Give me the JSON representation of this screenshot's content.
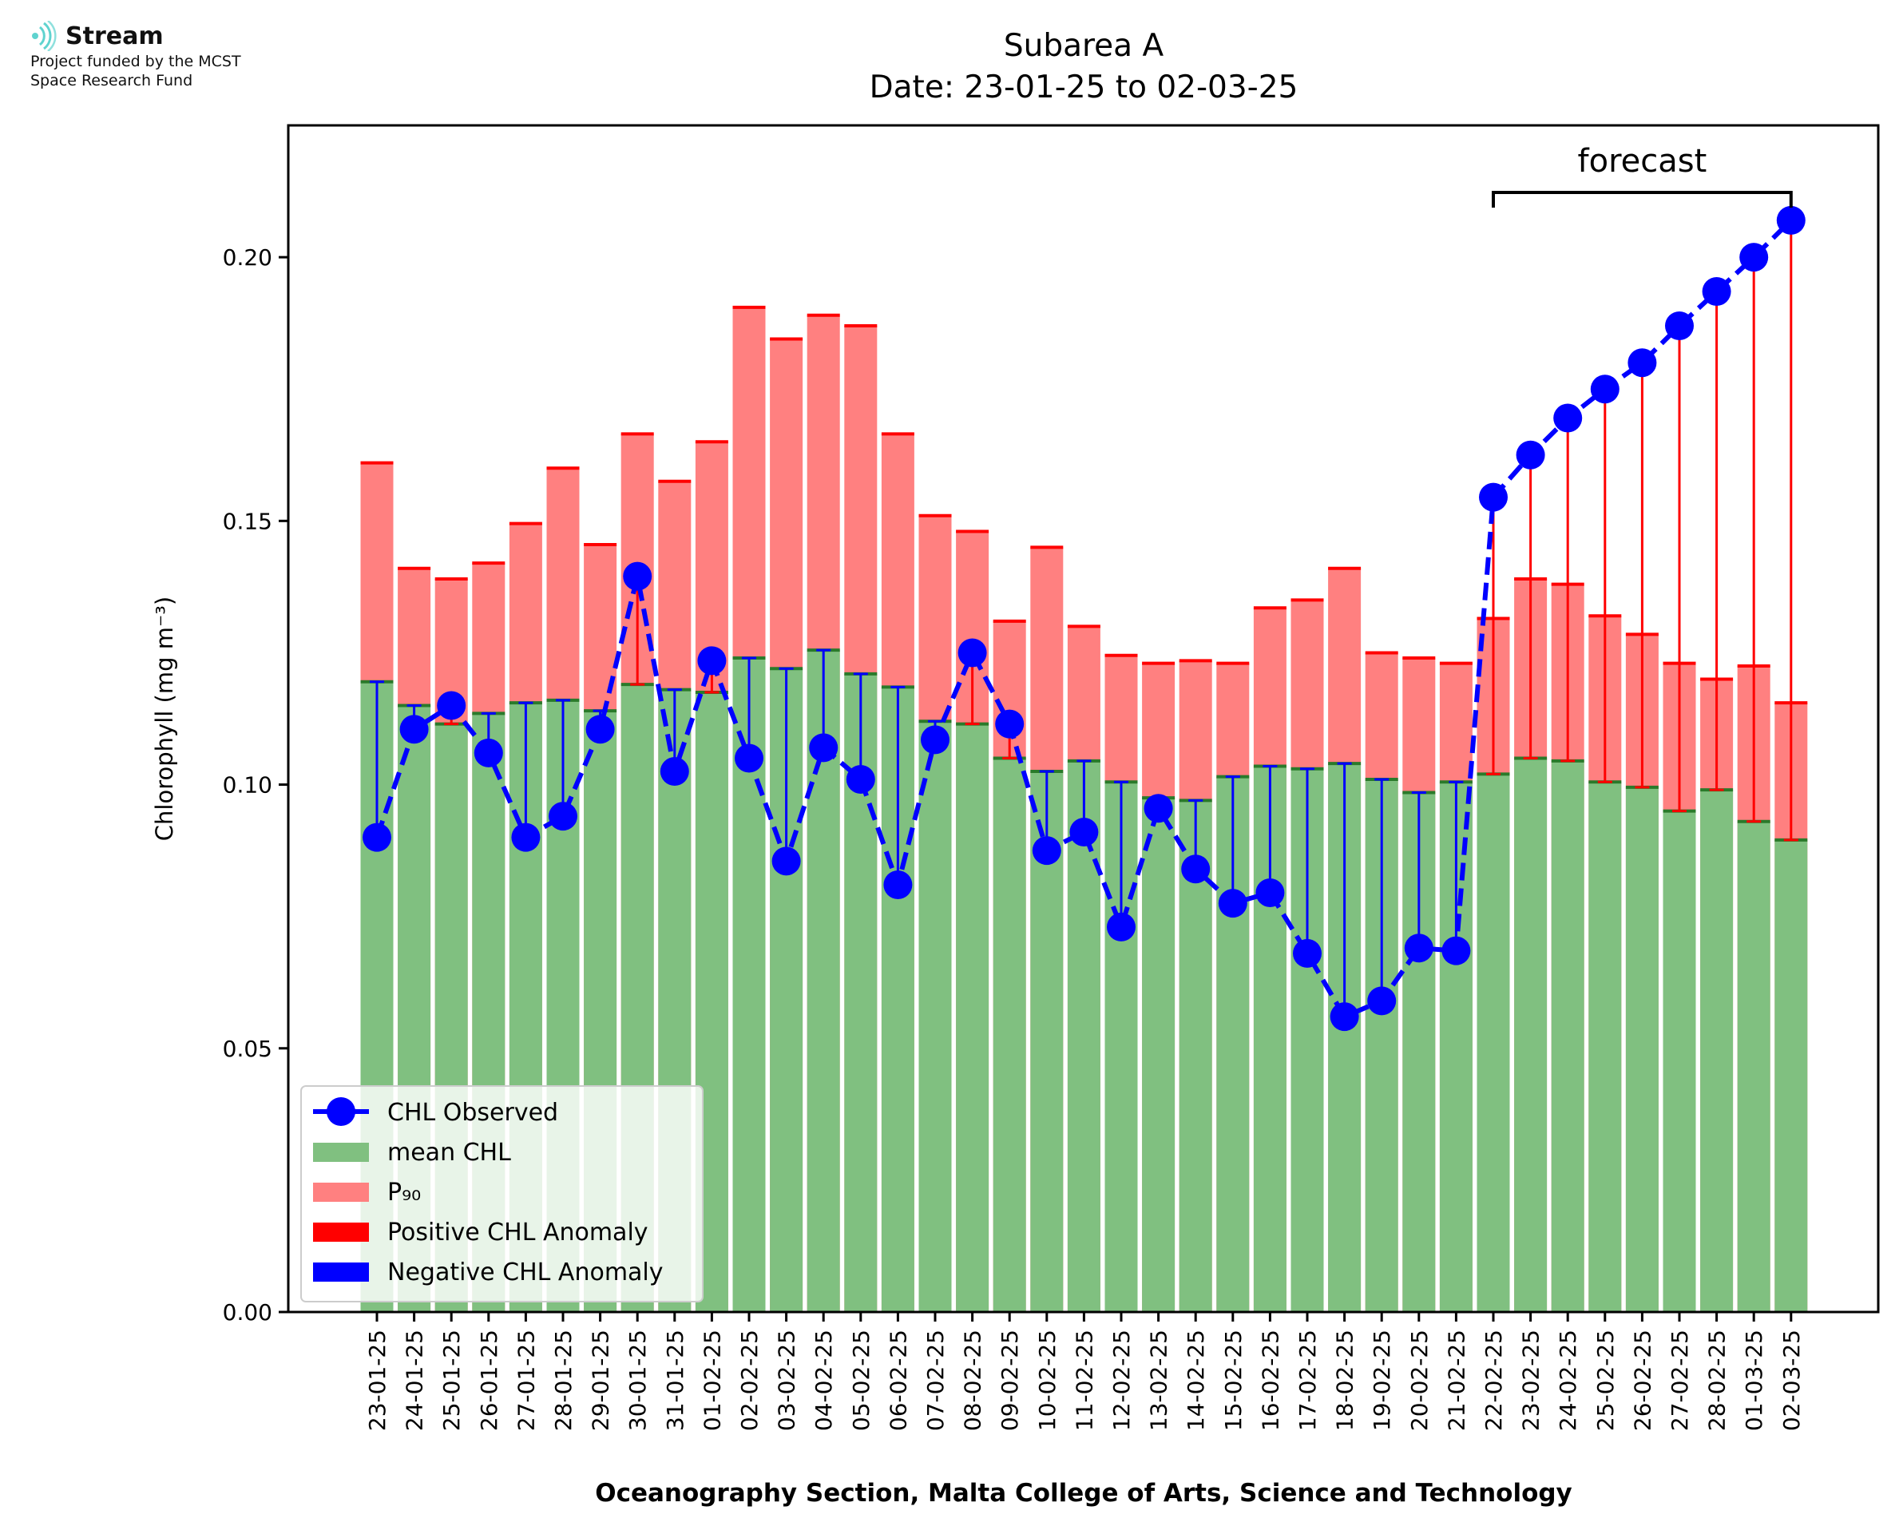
{
  "logo": {
    "name": "Stream",
    "subtitle_line1": "Project funded by the MCST",
    "subtitle_line2": "Space Research Fund"
  },
  "chart_data": {
    "type": "bar",
    "title": "Subarea A",
    "subtitle": "Date: 23-01-25 to 02-03-25",
    "xlabel": "Oceanography Section, Malta College of Arts, Science and Technology",
    "ylabel": "Chlorophyll (mg m⁻³)",
    "ylim": [
      0,
      0.225
    ],
    "yticks": [
      "0.00",
      "0.05",
      "0.10",
      "0.15",
      "0.20"
    ],
    "annotation": "forecast",
    "forecast_start_index": 30,
    "categories": [
      "23-01-25",
      "24-01-25",
      "25-01-25",
      "26-01-25",
      "27-01-25",
      "28-01-25",
      "29-01-25",
      "30-01-25",
      "31-01-25",
      "01-02-25",
      "02-02-25",
      "03-02-25",
      "04-02-25",
      "05-02-25",
      "06-02-25",
      "07-02-25",
      "08-02-25",
      "09-02-25",
      "10-02-25",
      "11-02-25",
      "12-02-25",
      "13-02-25",
      "14-02-25",
      "15-02-25",
      "16-02-25",
      "17-02-25",
      "18-02-25",
      "19-02-25",
      "20-02-25",
      "21-02-25",
      "22-02-25",
      "23-02-25",
      "24-02-25",
      "25-02-25",
      "26-02-25",
      "27-02-25",
      "28-02-25",
      "01-03-25",
      "02-03-25"
    ],
    "series": [
      {
        "name": "mean CHL",
        "color": "#80c080",
        "values": [
          0.1195,
          0.115,
          0.1115,
          0.1135,
          0.1155,
          0.116,
          0.114,
          0.119,
          0.118,
          0.1175,
          0.124,
          0.122,
          0.1255,
          0.121,
          0.1185,
          0.112,
          0.1115,
          0.105,
          0.1025,
          0.1045,
          0.1005,
          0.0975,
          0.097,
          0.1015,
          0.1035,
          0.103,
          0.104,
          0.101,
          0.0985,
          0.1005,
          0.102,
          0.105,
          0.1045,
          0.1005,
          0.0995,
          0.095,
          0.099,
          0.093,
          0.0895
        ]
      },
      {
        "name": "P₉₀",
        "color": "#ff8080",
        "values": [
          0.161,
          0.141,
          0.139,
          0.142,
          0.1495,
          0.16,
          0.1455,
          0.1665,
          0.1575,
          0.165,
          0.1905,
          0.1845,
          0.189,
          0.187,
          0.1665,
          0.151,
          0.148,
          0.131,
          0.145,
          0.13,
          0.1245,
          0.123,
          0.1235,
          0.123,
          0.1335,
          0.135,
          0.141,
          0.125,
          0.124,
          0.123,
          0.1315,
          0.139,
          0.138,
          0.132,
          0.1285,
          0.123,
          0.12,
          0.1225,
          0.1155
        ]
      },
      {
        "name": "CHL Observed",
        "color": "#0000ff",
        "values": [
          0.09,
          0.1105,
          0.115,
          0.106,
          0.09,
          0.094,
          0.1105,
          0.1395,
          0.1025,
          0.1235,
          0.105,
          0.0855,
          0.107,
          0.101,
          0.081,
          0.1085,
          0.125,
          0.1115,
          0.0875,
          0.091,
          0.073,
          0.0955,
          0.084,
          0.0775,
          0.0795,
          0.068,
          0.056,
          0.059,
          0.069,
          0.0685,
          0.1545,
          0.1625,
          0.1695,
          0.175,
          0.18,
          0.187,
          0.1935,
          0.2,
          0.207
        ]
      }
    ],
    "legend": {
      "placement": "lower-left",
      "entries": [
        "CHL Observed",
        "mean CHL",
        "P₉₀",
        "Positive CHL Anomaly",
        "Negative CHL Anomaly"
      ]
    },
    "colors": {
      "mean_bar": "#80c080",
      "mean_cap": "#2a7a2a",
      "p90_bar": "#ff8080",
      "p90_cap": "#ff0000",
      "positive_anomaly": "#ff0000",
      "negative_anomaly": "#0000ff",
      "observed": "#0000ff"
    },
    "grid": false
  }
}
